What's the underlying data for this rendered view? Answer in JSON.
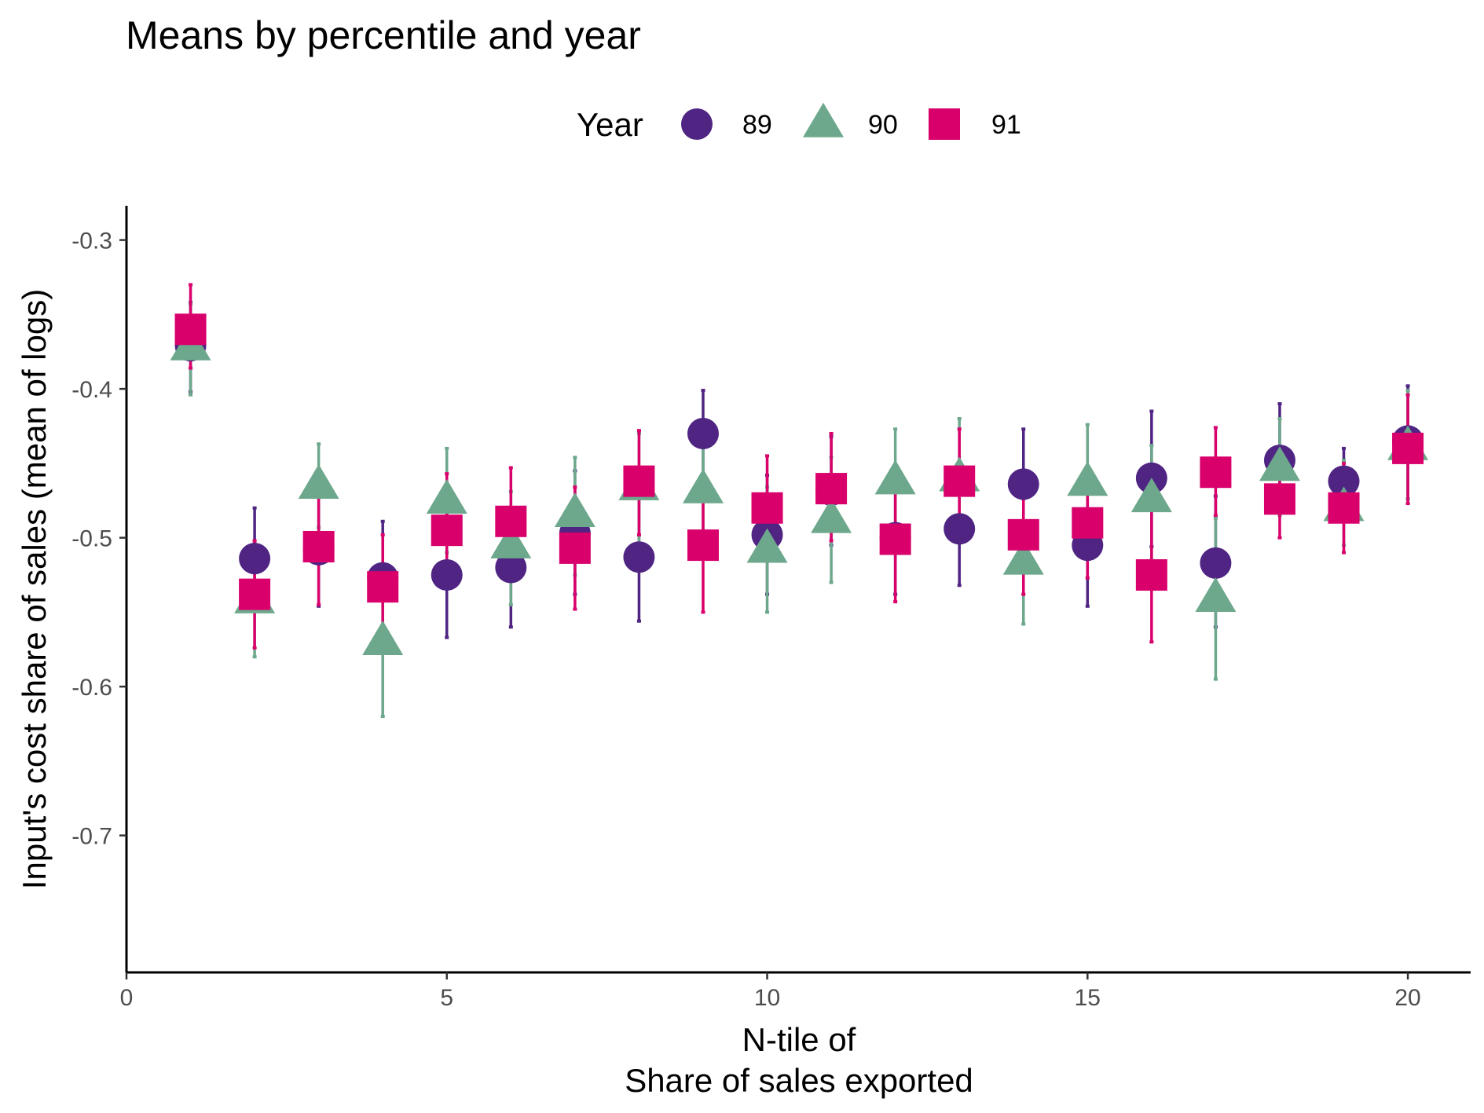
{
  "chart_data": {
    "type": "scatter",
    "title": "Means by percentile and year",
    "xlabel": [
      "N-tile of",
      "Share of sales exported"
    ],
    "ylabel": "Input's cost share of sales (mean of logs)",
    "xlim": [
      0,
      20.98
    ],
    "ylim": [
      -0.792,
      -0.277
    ],
    "x_ticks": [
      0,
      5,
      10,
      15,
      20
    ],
    "y_ticks": [
      -0.3,
      -0.4,
      -0.5,
      -0.6,
      -0.7
    ],
    "x_tick_labels": [
      "0",
      "5",
      "10",
      "15",
      "20"
    ],
    "y_tick_labels": [
      "-0.3",
      "-0.4",
      "-0.5",
      "-0.6",
      "-0.7"
    ],
    "grid": false,
    "legend": {
      "title": "Year",
      "position": "top"
    },
    "error_bars": true,
    "series": [
      {
        "name": "89",
        "shape": "circle",
        "color": "#4f2483",
        "x": [
          1,
          2,
          3,
          4,
          5,
          6,
          7,
          8,
          9,
          10,
          11,
          12,
          13,
          14,
          15,
          16,
          17,
          18,
          19,
          20
        ],
        "y": [
          -0.371,
          -0.514,
          -0.508,
          -0.527,
          -0.525,
          -0.52,
          -0.497,
          -0.513,
          -0.43,
          -0.498,
          -0.468,
          -0.5,
          -0.494,
          -0.464,
          -0.505,
          -0.46,
          -0.517,
          -0.448,
          -0.462,
          -0.435
        ],
        "low": [
          -0.402,
          -0.547,
          -0.546,
          -0.565,
          -0.567,
          -0.56,
          -0.538,
          -0.556,
          -0.46,
          -0.538,
          -0.505,
          -0.538,
          -0.532,
          -0.502,
          -0.546,
          -0.506,
          -0.56,
          -0.485,
          -0.484,
          -0.474
        ],
        "high": [
          -0.342,
          -0.48,
          -0.47,
          -0.489,
          -0.483,
          -0.48,
          -0.455,
          -0.47,
          -0.401,
          -0.458,
          -0.432,
          -0.462,
          -0.456,
          -0.427,
          -0.462,
          -0.415,
          -0.472,
          -0.41,
          -0.44,
          -0.398
        ]
      },
      {
        "name": "90",
        "shape": "triangle",
        "color": "#6ea88c",
        "x": [
          1,
          2,
          3,
          4,
          5,
          6,
          7,
          8,
          9,
          10,
          11,
          12,
          13,
          14,
          15,
          16,
          17,
          18,
          19,
          20
        ],
        "y": [
          -0.372,
          -0.542,
          -0.465,
          -0.57,
          -0.475,
          -0.505,
          -0.484,
          -0.466,
          -0.468,
          -0.508,
          -0.488,
          -0.462,
          -0.46,
          -0.516,
          -0.463,
          -0.474,
          -0.541,
          -0.453,
          -0.48,
          -0.439
        ],
        "low": [
          -0.404,
          -0.58,
          -0.493,
          -0.62,
          -0.51,
          -0.545,
          -0.525,
          -0.505,
          -0.5,
          -0.55,
          -0.53,
          -0.5,
          -0.495,
          -0.558,
          -0.5,
          -0.515,
          -0.595,
          -0.485,
          -0.505,
          -0.474
        ],
        "high": [
          -0.343,
          -0.504,
          -0.437,
          -0.52,
          -0.44,
          -0.469,
          -0.446,
          -0.43,
          -0.436,
          -0.466,
          -0.446,
          -0.427,
          -0.42,
          -0.474,
          -0.424,
          -0.438,
          -0.487,
          -0.42,
          -0.448,
          -0.401
        ]
      },
      {
        "name": "91",
        "shape": "square",
        "color": "#d9006c",
        "x": [
          1,
          2,
          3,
          4,
          5,
          6,
          7,
          8,
          9,
          10,
          11,
          12,
          13,
          14,
          15,
          16,
          17,
          18,
          19,
          20
        ],
        "y": [
          -0.36,
          -0.538,
          -0.506,
          -0.533,
          -0.495,
          -0.489,
          -0.507,
          -0.462,
          -0.505,
          -0.48,
          -0.467,
          -0.501,
          -0.462,
          -0.498,
          -0.49,
          -0.525,
          -0.456,
          -0.474,
          -0.48,
          -0.44
        ],
        "low": [
          -0.386,
          -0.574,
          -0.545,
          -0.568,
          -0.53,
          -0.525,
          -0.548,
          -0.498,
          -0.55,
          -0.512,
          -0.502,
          -0.543,
          -0.497,
          -0.538,
          -0.527,
          -0.57,
          -0.485,
          -0.5,
          -0.51,
          -0.477
        ],
        "high": [
          -0.33,
          -0.502,
          -0.467,
          -0.498,
          -0.457,
          -0.453,
          -0.466,
          -0.428,
          -0.46,
          -0.445,
          -0.43,
          -0.459,
          -0.427,
          -0.458,
          -0.453,
          -0.48,
          -0.426,
          -0.448,
          -0.45,
          -0.404
        ]
      }
    ]
  }
}
